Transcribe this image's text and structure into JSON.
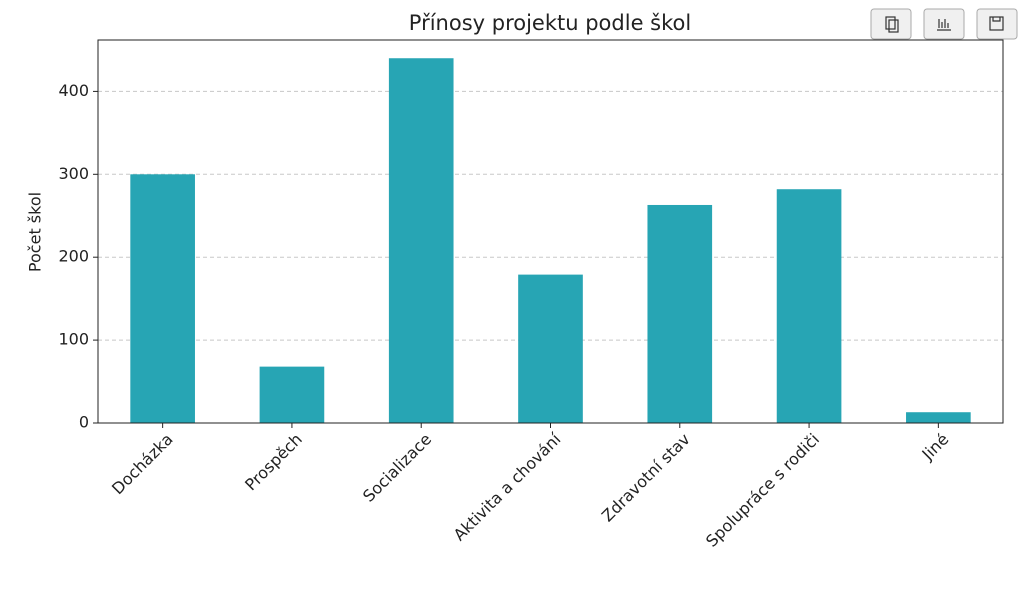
{
  "chart_data": {
    "type": "bar",
    "title": "Přínosy projektu podle škol",
    "y_label": "Počet škol",
    "categories": [
      "Docházka",
      "Prospěch",
      "Socializace",
      "Aktivita a chování",
      "Zdravotní stav",
      "Spolupráce s rodiči",
      "Jiné"
    ],
    "values": [
      300,
      68,
      440,
      179,
      263,
      282,
      13
    ],
    "color": "#27a5b4",
    "ylim": [
      0,
      462
    ],
    "yticks": [
      0,
      100,
      200,
      300,
      400
    ],
    "grid": true
  }
}
